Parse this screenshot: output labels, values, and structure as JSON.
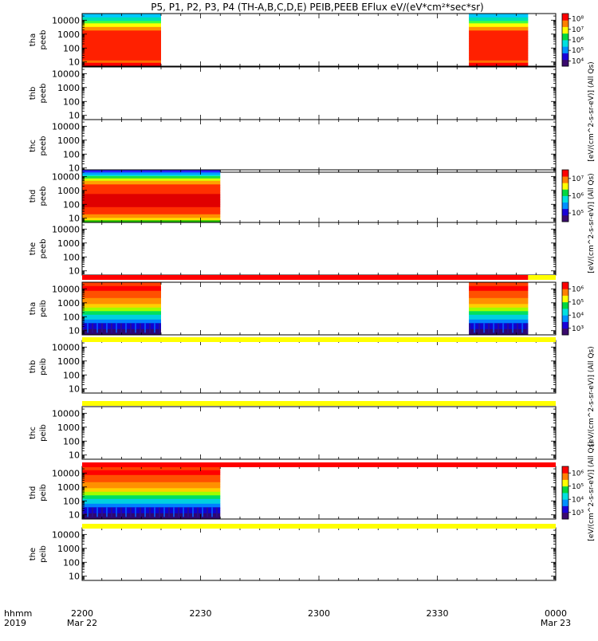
{
  "chart_data": {
    "type": "heatmap",
    "title": "P5, P1, P2, P3, P4 (TH-A,B,C,D,E) PEIB,PEEB EFlux eV/(eV*cm²*sec*sr)",
    "colorbar_unit_label": "[eV/(cm^2-s-sr-eV)] (All Qs)",
    "ylog": true,
    "ylim": [
      5,
      30000
    ],
    "yticks": [
      "10",
      "100",
      "1000",
      "10000"
    ],
    "x_start_label": "hhmm",
    "x_start_year": "2019",
    "xticks": [
      {
        "label": "2200",
        "sub": "Mar 22",
        "minute": 0
      },
      {
        "label": "2230",
        "sub": "",
        "minute": 30
      },
      {
        "label": "2300",
        "sub": "",
        "minute": 60
      },
      {
        "label": "2330",
        "sub": "",
        "minute": 90
      },
      {
        "label": "0000",
        "sub": "Mar 23",
        "minute": 120
      }
    ],
    "xlim_minutes": [
      0,
      120
    ],
    "panels": [
      {
        "probe": "tha",
        "product": "peeb",
        "data_intervals": [
          [
            0,
            20
          ],
          [
            98,
            113
          ]
        ],
        "profile": "peeb_a",
        "colorbar": {
          "ticks": [
            "10⁴",
            "10⁵",
            "10⁶",
            "10⁷",
            "10⁸"
          ]
        }
      },
      {
        "probe": "thb",
        "product": "peeb",
        "data_intervals": [],
        "profile": "",
        "colorbar": null
      },
      {
        "probe": "thc",
        "product": "peeb",
        "data_intervals": [],
        "profile": "",
        "colorbar": null
      },
      {
        "probe": "thd",
        "product": "peeb",
        "data_intervals": [
          [
            0,
            35
          ]
        ],
        "profile": "peeb_d",
        "colorbar": {
          "ticks": [
            "10⁵",
            "10⁶",
            "10⁷"
          ]
        }
      },
      {
        "probe": "the",
        "product": "peeb",
        "data_intervals": [],
        "profile": "",
        "colorbar": null
      },
      {
        "probe": "tha",
        "product": "peib",
        "data_intervals": [
          [
            0,
            20
          ],
          [
            98,
            113
          ]
        ],
        "profile": "peib",
        "colorbar": {
          "ticks": [
            "10³",
            "10⁴",
            "10⁵",
            "10⁶"
          ]
        }
      },
      {
        "probe": "thb",
        "product": "peib",
        "data_intervals": [],
        "profile": "",
        "colorbar": null
      },
      {
        "probe": "thc",
        "product": "peib",
        "data_intervals": [],
        "profile": "",
        "colorbar": null
      },
      {
        "probe": "thd",
        "product": "peib",
        "data_intervals": [
          [
            0,
            35
          ]
        ],
        "profile": "peib",
        "colorbar": {
          "ticks": [
            "10³",
            "10⁴",
            "10⁵",
            "10⁶"
          ]
        }
      },
      {
        "probe": "the",
        "product": "peib",
        "data_intervals": [],
        "profile": "",
        "colorbar": null
      }
    ],
    "status_bars": [
      {
        "after_panel": 4,
        "segments": [
          {
            "from": 0,
            "to": 113,
            "color": "#ff0000"
          },
          {
            "from": 113,
            "to": 120,
            "color": "#ffff00"
          }
        ]
      },
      {
        "after_panel": 5,
        "segments": [
          {
            "from": 0,
            "to": 120,
            "color": "#ffff00"
          }
        ]
      },
      {
        "after_panel": 6,
        "segments": [
          {
            "from": 0,
            "to": 120,
            "color": "#ffff00"
          }
        ]
      },
      {
        "after_panel": 7,
        "segments": [
          {
            "from": 0,
            "to": 120,
            "color": "#ff0000"
          }
        ]
      },
      {
        "after_panel": 8,
        "segments": [
          {
            "from": 0,
            "to": 120,
            "color": "#ffff00"
          }
        ]
      }
    ],
    "colormap": [
      "#3a0a6e",
      "#1a00d8",
      "#0090ff",
      "#00e0e0",
      "#00d840",
      "#ffff00",
      "#ff8000",
      "#ff0000"
    ]
  }
}
